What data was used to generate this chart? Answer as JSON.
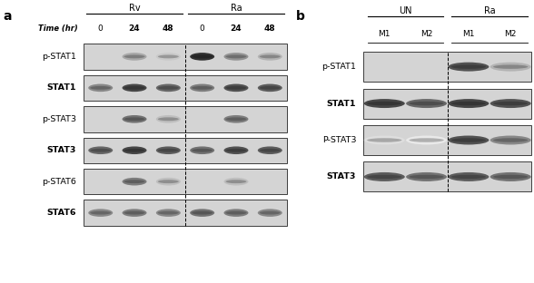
{
  "bg_color": "#ffffff",
  "panel_a": {
    "label": "a",
    "rows": [
      "p-STAT1",
      "STAT1",
      "p-STAT3",
      "STAT3",
      "p-STAT6",
      "STAT6"
    ],
    "time_label": "Time (hr)",
    "time_points": [
      "0",
      "24",
      "48",
      "0",
      "24",
      "48"
    ],
    "group_labels": [
      "Rv",
      "Ra"
    ],
    "band_data": [
      [
        0.0,
        0.4,
        0.25,
        0.95,
        0.5,
        0.35
      ],
      [
        0.55,
        0.85,
        0.7,
        0.6,
        0.8,
        0.75
      ],
      [
        0.0,
        0.65,
        0.3,
        0.0,
        0.6,
        0.0
      ],
      [
        0.7,
        0.85,
        0.75,
        0.65,
        0.8,
        0.75
      ],
      [
        0.0,
        0.6,
        0.3,
        0.0,
        0.3,
        0.0
      ],
      [
        0.55,
        0.6,
        0.55,
        0.65,
        0.6,
        0.55
      ]
    ],
    "blot_bg": "#d4d4d4"
  },
  "panel_b": {
    "label": "b",
    "rows": [
      "p-STAT1",
      "STAT1",
      "P-STAT3",
      "STAT3"
    ],
    "group_labels": [
      "UN",
      "Ra"
    ],
    "col_labels": [
      "M1",
      "M2",
      "M1",
      "M2"
    ],
    "band_data": [
      [
        0.0,
        0.0,
        0.8,
        0.35
      ],
      [
        0.85,
        0.7,
        0.85,
        0.8
      ],
      [
        0.15,
        0.1,
        0.8,
        0.55
      ],
      [
        0.75,
        0.65,
        0.75,
        0.65
      ]
    ],
    "blot_bg": "#d4d4d4"
  }
}
